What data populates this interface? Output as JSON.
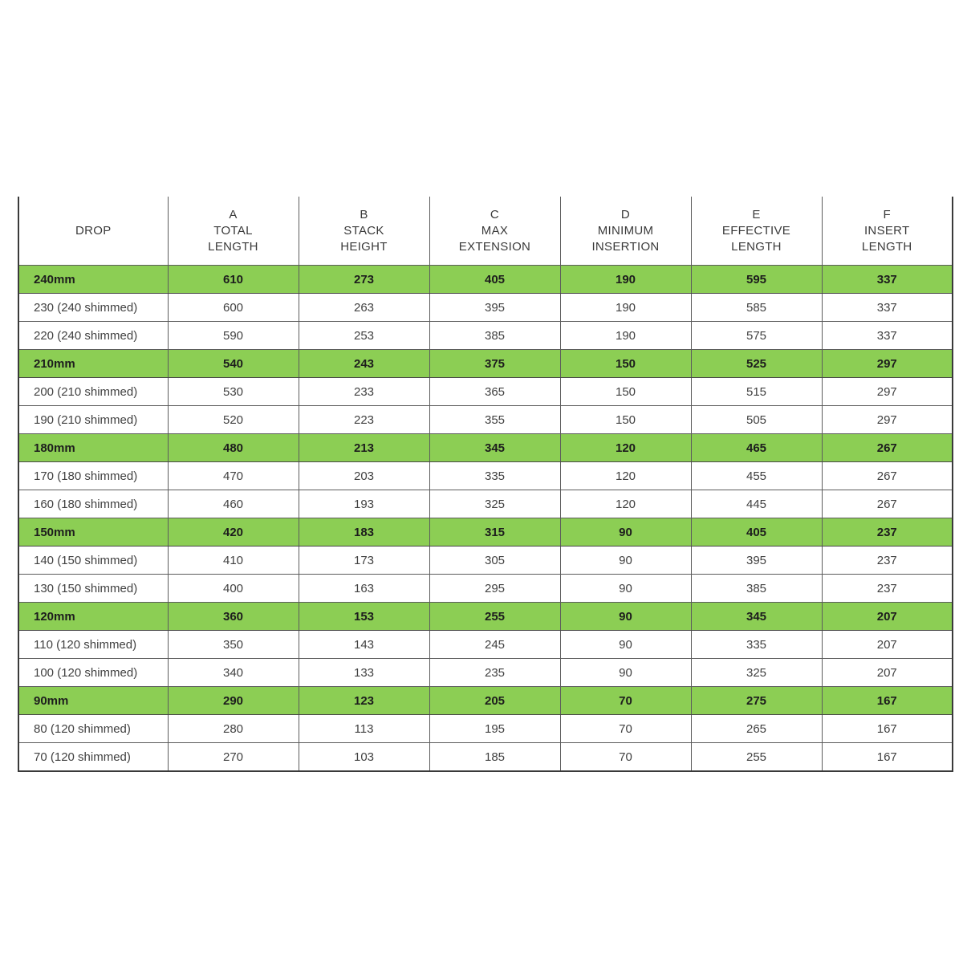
{
  "colors": {
    "highlight_green": "#8CCE54",
    "text": "#414141",
    "border_inner": "#5c5c5c",
    "border_outer": "#3a3a3a",
    "background": "#ffffff"
  },
  "chart_data": {
    "type": "table",
    "title": "",
    "columns": [
      "DROP",
      "A TOTAL LENGTH",
      "B STACK HEIGHT",
      "C MAX EXTENSION",
      "D MINIMUM INSERTION",
      "E EFFECTIVE LENGTH",
      "F INSERT LENGTH"
    ],
    "header_lines": [
      [
        "DROP"
      ],
      [
        "A",
        "TOTAL",
        "LENGTH"
      ],
      [
        "B",
        "STACK",
        "HEIGHT"
      ],
      [
        "C",
        "MAX",
        "EXTENSION"
      ],
      [
        "D",
        "MINIMUM",
        "INSERTION"
      ],
      [
        "E",
        "EFFECTIVE",
        "LENGTH"
      ],
      [
        "F",
        "INSERT",
        "LENGTH"
      ]
    ],
    "rows": [
      {
        "drop": "240mm",
        "highlight": true,
        "values": [
          "610",
          "273",
          "405",
          "190",
          "595",
          "337"
        ]
      },
      {
        "drop": "230 (240 shimmed)",
        "highlight": false,
        "values": [
          "600",
          "263",
          "395",
          "190",
          "585",
          "337"
        ]
      },
      {
        "drop": "220 (240 shimmed)",
        "highlight": false,
        "values": [
          "590",
          "253",
          "385",
          "190",
          "575",
          "337"
        ]
      },
      {
        "drop": "210mm",
        "highlight": true,
        "values": [
          "540",
          "243",
          "375",
          "150",
          "525",
          "297"
        ]
      },
      {
        "drop": "200 (210 shimmed)",
        "highlight": false,
        "values": [
          "530",
          "233",
          "365",
          "150",
          "515",
          "297"
        ]
      },
      {
        "drop": "190 (210 shimmed)",
        "highlight": false,
        "values": [
          "520",
          "223",
          "355",
          "150",
          "505",
          "297"
        ]
      },
      {
        "drop": "180mm",
        "highlight": true,
        "values": [
          "480",
          "213",
          "345",
          "120",
          "465",
          "267"
        ]
      },
      {
        "drop": "170 (180 shimmed)",
        "highlight": false,
        "values": [
          "470",
          "203",
          "335",
          "120",
          "455",
          "267"
        ]
      },
      {
        "drop": "160 (180 shimmed)",
        "highlight": false,
        "values": [
          "460",
          "193",
          "325",
          "120",
          "445",
          "267"
        ]
      },
      {
        "drop": "150mm",
        "highlight": true,
        "values": [
          "420",
          "183",
          "315",
          "90",
          "405",
          "237"
        ]
      },
      {
        "drop": "140 (150 shimmed)",
        "highlight": false,
        "values": [
          "410",
          "173",
          "305",
          "90",
          "395",
          "237"
        ]
      },
      {
        "drop": "130 (150 shimmed)",
        "highlight": false,
        "values": [
          "400",
          "163",
          "295",
          "90",
          "385",
          "237"
        ]
      },
      {
        "drop": "120mm",
        "highlight": true,
        "values": [
          "360",
          "153",
          "255",
          "90",
          "345",
          "207"
        ]
      },
      {
        "drop": "110 (120 shimmed)",
        "highlight": false,
        "values": [
          "350",
          "143",
          "245",
          "90",
          "335",
          "207"
        ]
      },
      {
        "drop": "100 (120 shimmed)",
        "highlight": false,
        "values": [
          "340",
          "133",
          "235",
          "90",
          "325",
          "207"
        ]
      },
      {
        "drop": "90mm",
        "highlight": true,
        "values": [
          "290",
          "123",
          "205",
          "70",
          "275",
          "167"
        ]
      },
      {
        "drop": "80 (120 shimmed)",
        "highlight": false,
        "values": [
          "280",
          "113",
          "195",
          "70",
          "265",
          "167"
        ]
      },
      {
        "drop": "70 (120 shimmed)",
        "highlight": false,
        "values": [
          "270",
          "103",
          "185",
          "70",
          "255",
          "167"
        ]
      }
    ]
  }
}
